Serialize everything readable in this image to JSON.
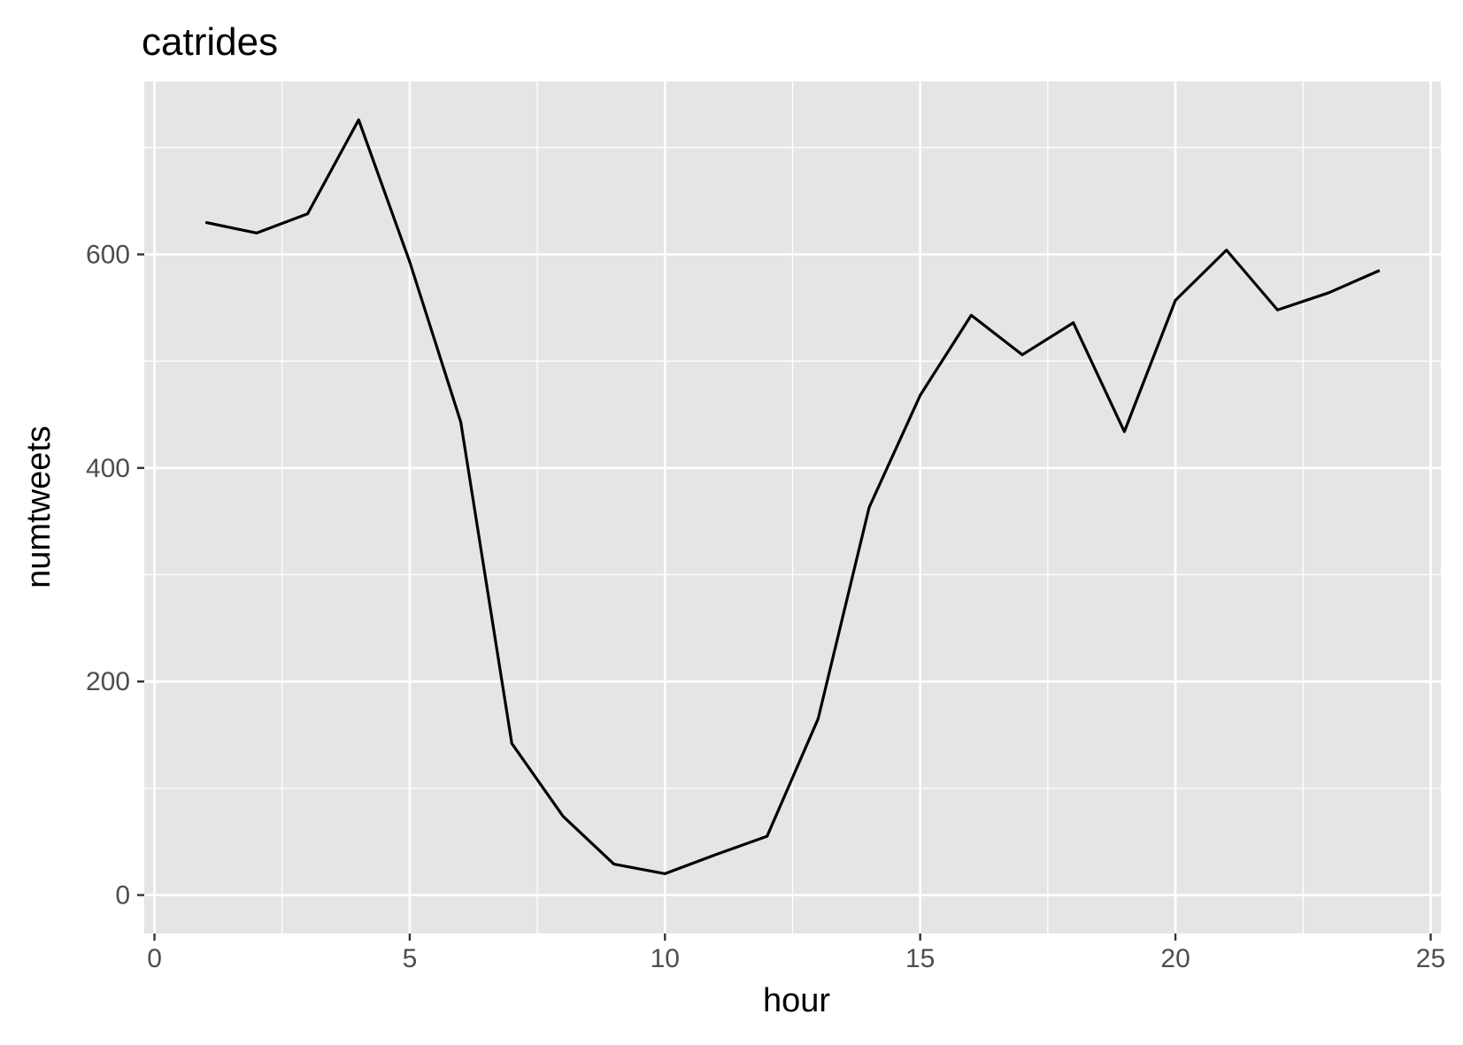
{
  "chart_data": {
    "type": "line",
    "title": "catrides",
    "xlabel": "hour",
    "ylabel": "numtweets",
    "xlim": [
      -0.2,
      25.2
    ],
    "ylim": [
      -36,
      762
    ],
    "x_ticks": [
      0,
      5,
      10,
      15,
      20,
      25
    ],
    "y_ticks": [
      0,
      200,
      400,
      600
    ],
    "x_tick_labels": [
      "0",
      "5",
      "10",
      "15",
      "20",
      "25"
    ],
    "y_tick_labels": [
      "0",
      "200",
      "400",
      "600"
    ],
    "grid": true,
    "legend": "none",
    "colors": {
      "panel": "#e5e5e5",
      "grid": "#ffffff",
      "line": "#000000",
      "ticks": "#333333"
    },
    "series": [
      {
        "x": [
          1,
          2,
          3,
          4,
          5,
          6,
          7,
          8,
          9,
          10,
          11,
          12,
          13,
          14,
          15,
          16,
          17,
          18,
          19,
          20,
          21,
          22,
          23,
          24
        ],
        "values": [
          630,
          620,
          638,
          726,
          593,
          443,
          142,
          74,
          29,
          20,
          38,
          55,
          165,
          363,
          468,
          543,
          506,
          536,
          434,
          557,
          604,
          548,
          564,
          585
        ]
      }
    ]
  }
}
